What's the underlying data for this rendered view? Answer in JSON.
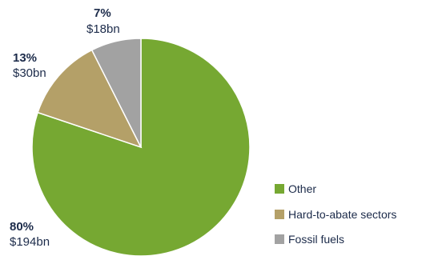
{
  "chart_data": {
    "type": "pie",
    "slices": [
      {
        "label": "Other",
        "percent": "80%",
        "amount": "$194bn",
        "value": 194,
        "color": "#76a832"
      },
      {
        "label": "Hard-to-abate sectors",
        "percent": "13%",
        "amount": "$30bn",
        "value": 30,
        "color": "#b4a068"
      },
      {
        "label": "Fossil fuels",
        "percent": "7%",
        "amount": "$18bn",
        "value": 18,
        "color": "#a2a2a2"
      }
    ],
    "legend": {
      "placement": "bottom-right",
      "items": [
        "Other",
        "Hard-to-abate sectors",
        "Fossil fuels"
      ]
    },
    "text_color": "#1c2b4a"
  }
}
